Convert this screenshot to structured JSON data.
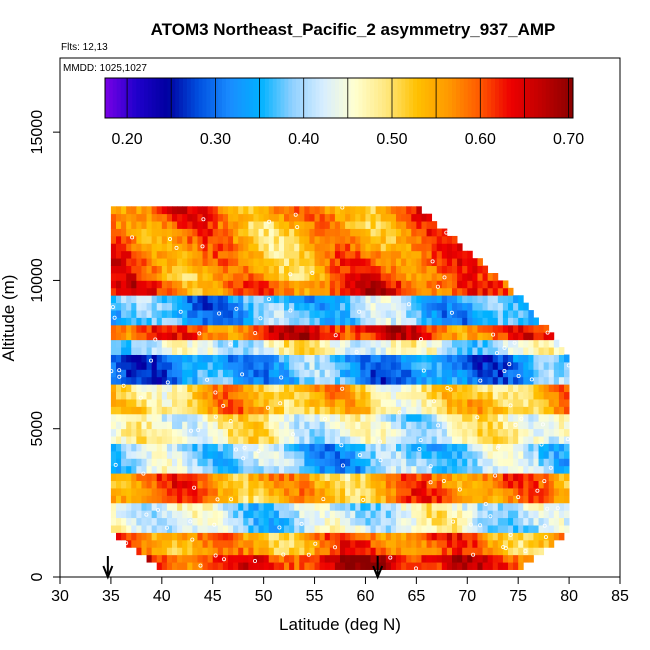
{
  "chart_data": {
    "type": "heatmap",
    "title": "ATOM3 Northeast_Pacific_2 asymmetry_937_AMP",
    "flights_label": "Flts: 12,13",
    "mmdd_label": "MMDD: 1025,1027",
    "xlabel": "Latitude (deg N)",
    "ylabel": "Altitude (m)",
    "xlim": [
      30,
      85
    ],
    "ylim": [
      0,
      17500
    ],
    "x_ticks": [
      "30",
      "35",
      "40",
      "45",
      "50",
      "55",
      "60",
      "65",
      "70",
      "75",
      "80",
      "85"
    ],
    "y_ticks": [
      "0",
      "5000",
      "10000",
      "15000"
    ],
    "x_tick_values": [
      30,
      35,
      40,
      45,
      50,
      55,
      60,
      65,
      70,
      75,
      80,
      85
    ],
    "y_tick_values": [
      0,
      5000,
      10000,
      15000
    ],
    "colorbar": {
      "min": 0.175,
      "max": 0.705,
      "tick_labels": [
        "0.20",
        "0.30",
        "0.40",
        "0.50",
        "0.60",
        "0.70"
      ],
      "tick_values": [
        0.2,
        0.3,
        0.4,
        0.5,
        0.6,
        0.7
      ],
      "colors": [
        "#7a00e6",
        "#2000cc",
        "#0000a0",
        "#0050e0",
        "#1a8cff",
        "#00b2ff",
        "#8fd0ff",
        "#d8eeff",
        "#ffffd0",
        "#ffe880",
        "#ffc000",
        "#ff9a00",
        "#ff5a00",
        "#ee0000",
        "#c00000",
        "#8a0000"
      ]
    },
    "flight_markers_lat": [
      34.7,
      61.2
    ],
    "profiles": [
      {
        "lat": 35,
        "alt_min": 1500,
        "alt_max": 12500
      },
      {
        "lat": 40,
        "alt_min": 200,
        "alt_max": 12500
      },
      {
        "lat": 45,
        "alt_min": 200,
        "alt_max": 12500
      },
      {
        "lat": 50,
        "alt_min": 200,
        "alt_max": 12500
      },
      {
        "lat": 55,
        "alt_min": 200,
        "alt_max": 12500
      },
      {
        "lat": 60,
        "alt_min": 200,
        "alt_max": 12500
      },
      {
        "lat": 65,
        "alt_min": 200,
        "alt_max": 12500
      },
      {
        "lat": 70,
        "alt_min": 300,
        "alt_max": 11000
      },
      {
        "lat": 75,
        "alt_min": 300,
        "alt_max": 9500
      },
      {
        "lat": 80,
        "alt_min": 1500,
        "alt_max": 7500
      }
    ],
    "layers": [
      {
        "alt_min": 12000,
        "alt_max": 12500,
        "value": 0.58
      },
      {
        "alt_min": 11000,
        "alt_max": 12000,
        "value": 0.56
      },
      {
        "alt_min": 10000,
        "alt_max": 11000,
        "value": 0.57
      },
      {
        "alt_min": 9500,
        "alt_max": 10000,
        "value": 0.6
      },
      {
        "alt_min": 8500,
        "alt_max": 9500,
        "value": 0.36
      },
      {
        "alt_min": 8000,
        "alt_max": 8500,
        "value": 0.62
      },
      {
        "alt_min": 7500,
        "alt_max": 8000,
        "value": 0.44
      },
      {
        "alt_min": 6500,
        "alt_max": 7500,
        "value": 0.33
      },
      {
        "alt_min": 5500,
        "alt_max": 6500,
        "value": 0.52
      },
      {
        "alt_min": 4500,
        "alt_max": 5500,
        "value": 0.45
      },
      {
        "alt_min": 3500,
        "alt_max": 4500,
        "value": 0.38
      },
      {
        "alt_min": 2500,
        "alt_max": 3500,
        "value": 0.56
      },
      {
        "alt_min": 1500,
        "alt_max": 2500,
        "value": 0.42
      },
      {
        "alt_min": 700,
        "alt_max": 1500,
        "value": 0.57
      },
      {
        "alt_min": 0,
        "alt_max": 700,
        "value": 0.64
      }
    ]
  }
}
